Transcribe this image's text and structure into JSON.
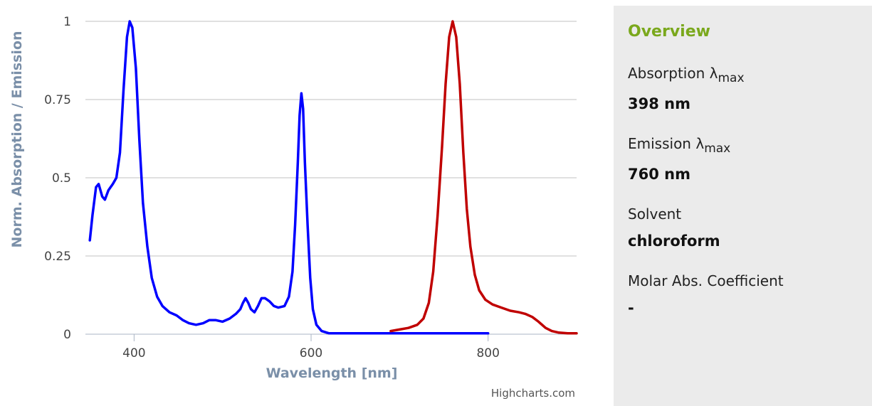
{
  "chart_data": {
    "type": "line",
    "xlabel": "Wavelength [nm]",
    "ylabel": "Norm. Absorption / Emission",
    "xlim": [
      345,
      900
    ],
    "ylim": [
      0,
      1
    ],
    "x_ticks": [
      "400",
      "600",
      "800"
    ],
    "x_tick_values": [
      400,
      600,
      800
    ],
    "y_ticks": [
      "0",
      "0.25",
      "0.5",
      "0.75",
      "1"
    ],
    "y_tick_values": [
      0,
      0.25,
      0.5,
      0.75,
      1
    ],
    "grid": "horizontal",
    "credit": "Highcharts.com",
    "series": [
      {
        "color": "#0000ff",
        "points": [
          [
            350,
            0.3
          ],
          [
            353,
            0.38
          ],
          [
            357,
            0.47
          ],
          [
            360,
            0.48
          ],
          [
            364,
            0.44
          ],
          [
            367,
            0.43
          ],
          [
            371,
            0.46
          ],
          [
            376,
            0.48
          ],
          [
            380,
            0.5
          ],
          [
            384,
            0.58
          ],
          [
            388,
            0.78
          ],
          [
            392,
            0.95
          ],
          [
            395,
            1.0
          ],
          [
            398,
            0.98
          ],
          [
            402,
            0.85
          ],
          [
            406,
            0.62
          ],
          [
            410,
            0.42
          ],
          [
            415,
            0.28
          ],
          [
            420,
            0.18
          ],
          [
            426,
            0.12
          ],
          [
            432,
            0.09
          ],
          [
            440,
            0.07
          ],
          [
            448,
            0.06
          ],
          [
            455,
            0.045
          ],
          [
            462,
            0.035
          ],
          [
            470,
            0.03
          ],
          [
            478,
            0.035
          ],
          [
            485,
            0.045
          ],
          [
            492,
            0.045
          ],
          [
            500,
            0.04
          ],
          [
            508,
            0.05
          ],
          [
            515,
            0.065
          ],
          [
            520,
            0.08
          ],
          [
            523,
            0.1
          ],
          [
            526,
            0.115
          ],
          [
            529,
            0.1
          ],
          [
            532,
            0.08
          ],
          [
            536,
            0.07
          ],
          [
            540,
            0.09
          ],
          [
            544,
            0.115
          ],
          [
            548,
            0.115
          ],
          [
            553,
            0.105
          ],
          [
            558,
            0.09
          ],
          [
            563,
            0.085
          ],
          [
            570,
            0.09
          ],
          [
            575,
            0.12
          ],
          [
            579,
            0.2
          ],
          [
            582,
            0.35
          ],
          [
            585,
            0.55
          ],
          [
            587,
            0.7
          ],
          [
            589,
            0.77
          ],
          [
            591,
            0.72
          ],
          [
            593,
            0.55
          ],
          [
            596,
            0.35
          ],
          [
            599,
            0.18
          ],
          [
            602,
            0.08
          ],
          [
            606,
            0.03
          ],
          [
            612,
            0.01
          ],
          [
            620,
            0.003
          ],
          [
            640,
            0.003
          ],
          [
            700,
            0.003
          ],
          [
            760,
            0.003
          ],
          [
            800,
            0.003
          ]
        ]
      },
      {
        "color": "#c00000",
        "points": [
          [
            690,
            0.01
          ],
          [
            700,
            0.015
          ],
          [
            710,
            0.02
          ],
          [
            720,
            0.03
          ],
          [
            727,
            0.05
          ],
          [
            733,
            0.1
          ],
          [
            738,
            0.2
          ],
          [
            743,
            0.38
          ],
          [
            748,
            0.6
          ],
          [
            752,
            0.8
          ],
          [
            756,
            0.95
          ],
          [
            760,
            1.0
          ],
          [
            764,
            0.95
          ],
          [
            768,
            0.8
          ],
          [
            772,
            0.58
          ],
          [
            776,
            0.4
          ],
          [
            780,
            0.28
          ],
          [
            785,
            0.19
          ],
          [
            790,
            0.14
          ],
          [
            797,
            0.11
          ],
          [
            805,
            0.095
          ],
          [
            815,
            0.085
          ],
          [
            825,
            0.075
          ],
          [
            835,
            0.07
          ],
          [
            842,
            0.065
          ],
          [
            850,
            0.055
          ],
          [
            857,
            0.04
          ],
          [
            865,
            0.02
          ],
          [
            872,
            0.01
          ],
          [
            880,
            0.005
          ],
          [
            890,
            0.003
          ],
          [
            900,
            0.003
          ]
        ]
      }
    ]
  },
  "overview": {
    "title": "Overview",
    "absorption_label": "Absorption λ",
    "absorption_sub": "max",
    "absorption_value": "398 nm",
    "emission_label": "Emission λ",
    "emission_sub": "max",
    "emission_value": "760 nm",
    "solvent_label": "Solvent",
    "solvent_value": "chloroform",
    "molar_label": "Molar Abs. Coefficient",
    "molar_value": "-"
  }
}
